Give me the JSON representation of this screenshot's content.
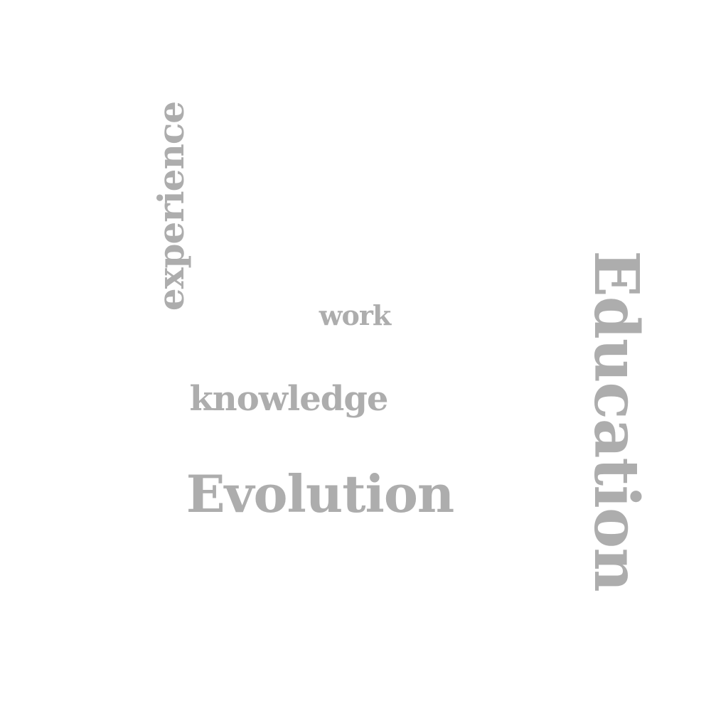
{
  "word_cloud": {
    "color": "#adadad",
    "background": "#ffffff",
    "words": {
      "experience": "experience",
      "work": "work",
      "knowledge": "knowledge",
      "evolution": "Evolution",
      "education": "Education"
    }
  }
}
